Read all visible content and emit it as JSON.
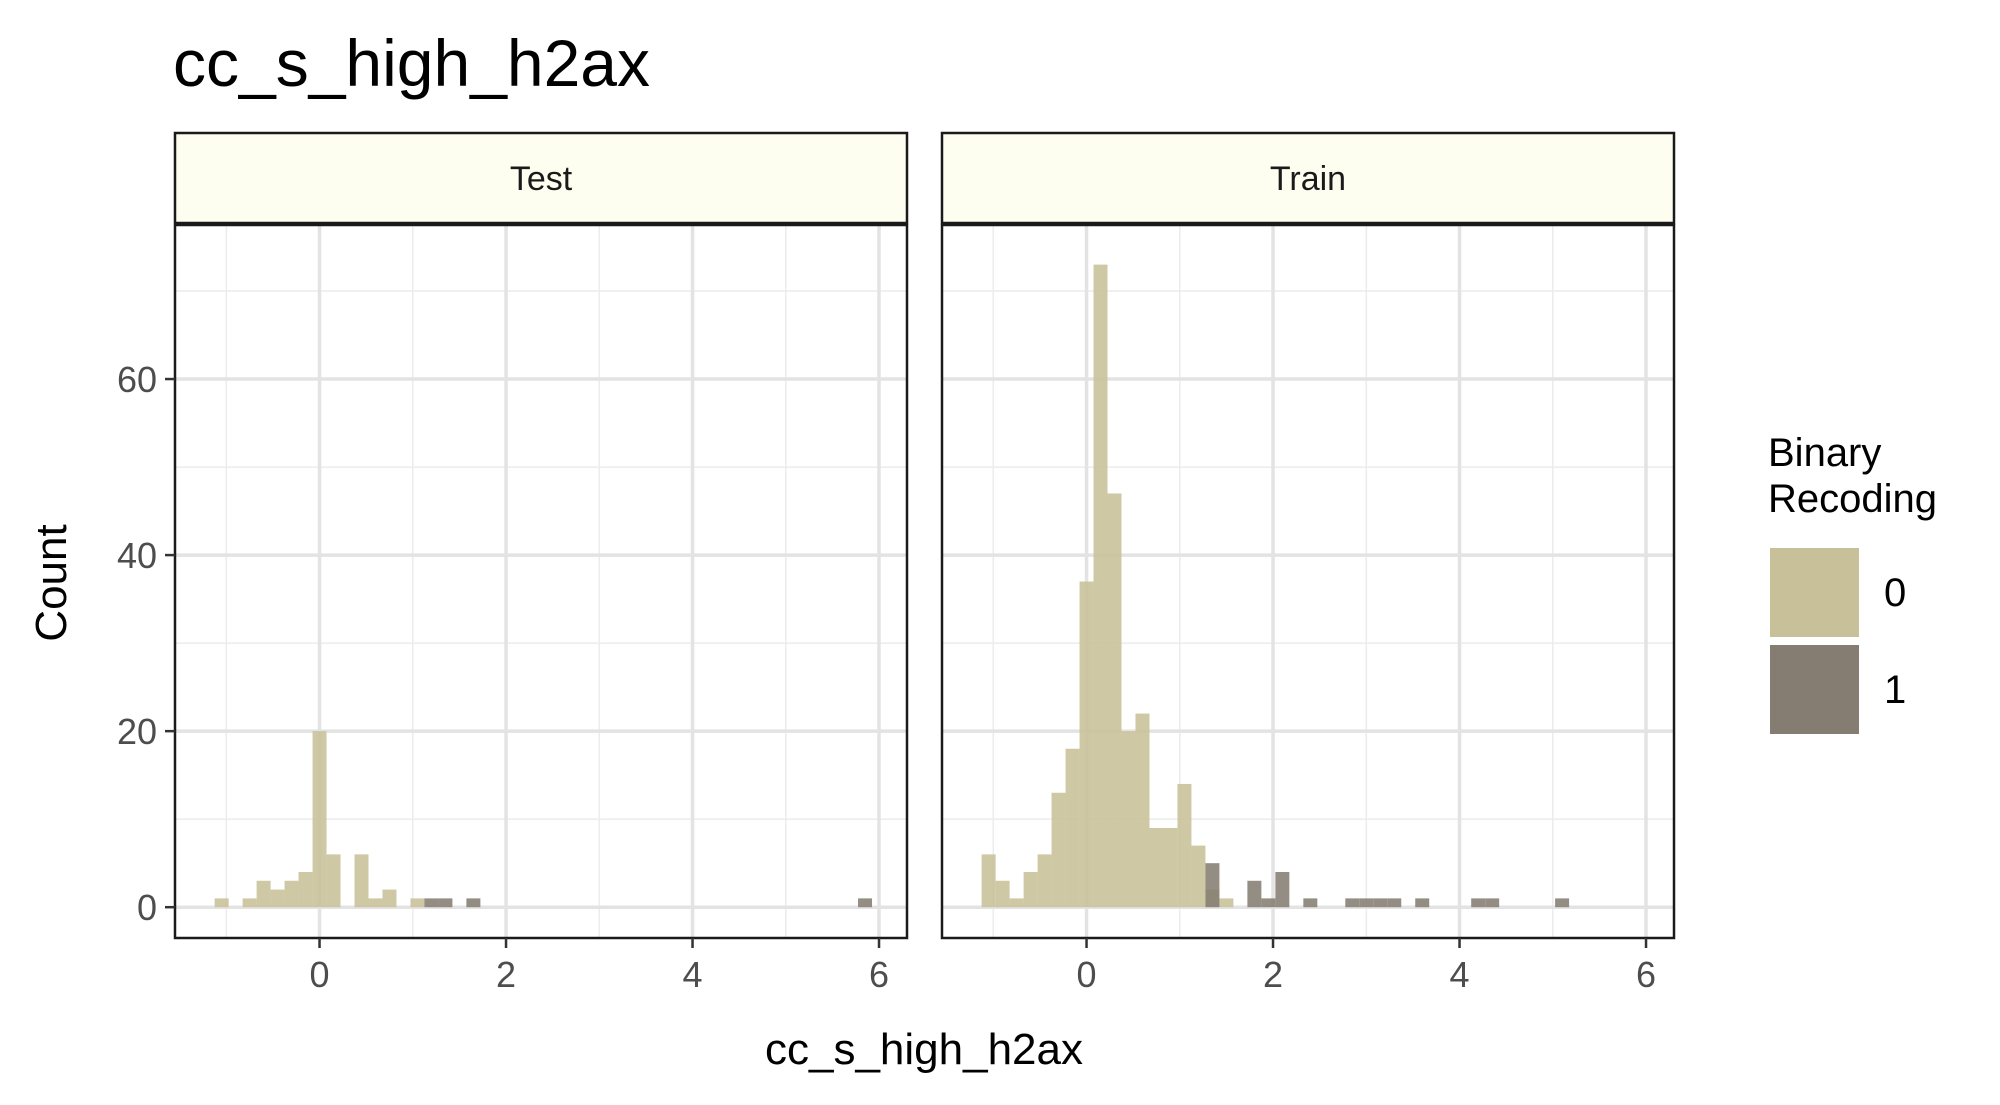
{
  "chart_data": {
    "type": "bar",
    "title": "cc_s_high_h2ax",
    "xlabel": "cc_s_high_h2ax",
    "ylabel": "Count",
    "xlim": [
      -1.55,
      6.3
    ],
    "ylim": [
      -3.5,
      77.5
    ],
    "x_ticks": [
      0,
      2,
      4,
      6
    ],
    "y_ticks": [
      0,
      20,
      40,
      60
    ],
    "bin_width": 0.15,
    "grid": true,
    "legend": {
      "title_lines": [
        "Binary",
        "Recoding"
      ],
      "position": "right",
      "entries": [
        {
          "label": "0",
          "color": "#c8c098"
        },
        {
          "label": "1",
          "color": "#857d72"
        }
      ]
    },
    "facets": [
      {
        "label": "Test",
        "bins": [
          {
            "x": -1.05,
            "count": 1,
            "group": "0"
          },
          {
            "x": -0.75,
            "count": 1,
            "group": "0"
          },
          {
            "x": -0.6,
            "count": 3,
            "group": "0"
          },
          {
            "x": -0.45,
            "count": 2,
            "group": "0"
          },
          {
            "x": -0.3,
            "count": 3,
            "group": "0"
          },
          {
            "x": -0.15,
            "count": 4,
            "group": "0"
          },
          {
            "x": 0.0,
            "count": 20,
            "group": "0"
          },
          {
            "x": 0.15,
            "count": 6,
            "group": "0"
          },
          {
            "x": 0.45,
            "count": 6,
            "group": "0"
          },
          {
            "x": 0.6,
            "count": 1,
            "group": "0"
          },
          {
            "x": 0.75,
            "count": 2,
            "group": "0"
          },
          {
            "x": 1.05,
            "count": 1,
            "group": "0"
          },
          {
            "x": 1.2,
            "count": 1,
            "group": "1"
          },
          {
            "x": 1.35,
            "count": 1,
            "group": "1"
          },
          {
            "x": 1.65,
            "count": 1,
            "group": "1"
          },
          {
            "x": 5.85,
            "count": 1,
            "group": "1"
          }
        ]
      },
      {
        "label": "Train",
        "bins": [
          {
            "x": -1.05,
            "count": 6,
            "group": "0"
          },
          {
            "x": -0.9,
            "count": 3,
            "group": "0"
          },
          {
            "x": -0.75,
            "count": 1,
            "group": "0"
          },
          {
            "x": -0.6,
            "count": 4,
            "group": "0"
          },
          {
            "x": -0.45,
            "count": 6,
            "group": "0"
          },
          {
            "x": -0.3,
            "count": 13,
            "group": "0"
          },
          {
            "x": -0.15,
            "count": 18,
            "group": "0"
          },
          {
            "x": 0.0,
            "count": 37,
            "group": "0"
          },
          {
            "x": 0.15,
            "count": 73,
            "group": "0"
          },
          {
            "x": 0.3,
            "count": 47,
            "group": "0"
          },
          {
            "x": 0.45,
            "count": 20,
            "group": "0"
          },
          {
            "x": 0.6,
            "count": 22,
            "group": "0"
          },
          {
            "x": 0.75,
            "count": 9,
            "group": "0"
          },
          {
            "x": 0.9,
            "count": 9,
            "group": "0"
          },
          {
            "x": 1.05,
            "count": 14,
            "group": "0"
          },
          {
            "x": 1.2,
            "count": 7,
            "group": "0"
          },
          {
            "x": 1.35,
            "count": 2,
            "group": "0"
          },
          {
            "x": 1.5,
            "count": 1,
            "group": "0"
          },
          {
            "x": 1.35,
            "count": 5,
            "group": "1"
          },
          {
            "x": 1.8,
            "count": 3,
            "group": "1"
          },
          {
            "x": 1.95,
            "count": 1,
            "group": "1"
          },
          {
            "x": 2.1,
            "count": 4,
            "group": "1"
          },
          {
            "x": 2.4,
            "count": 1,
            "group": "1"
          },
          {
            "x": 2.85,
            "count": 1,
            "group": "1"
          },
          {
            "x": 3.0,
            "count": 1,
            "group": "1"
          },
          {
            "x": 3.15,
            "count": 1,
            "group": "1"
          },
          {
            "x": 3.3,
            "count": 1,
            "group": "1"
          },
          {
            "x": 3.6,
            "count": 1,
            "group": "1"
          },
          {
            "x": 4.2,
            "count": 1,
            "group": "1"
          },
          {
            "x": 4.35,
            "count": 1,
            "group": "1"
          },
          {
            "x": 5.1,
            "count": 1,
            "group": "1"
          }
        ]
      }
    ]
  }
}
